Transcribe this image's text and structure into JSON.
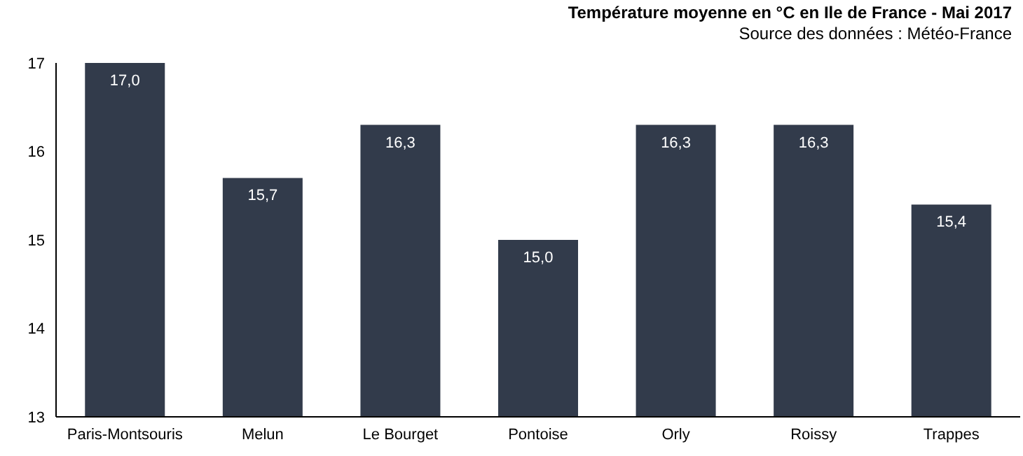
{
  "chart_data": {
    "type": "bar",
    "title": "Température moyenne en °C en Ile de France - Mai 2017",
    "subtitle": "Source des données : Météo-France",
    "categories": [
      "Paris-Montsouris",
      "Melun",
      "Le Bourget",
      "Pontoise",
      "Orly",
      "Roissy",
      "Trappes"
    ],
    "series": [
      {
        "color": "#323b4b",
        "values": [
          17.0,
          15.7,
          16.3,
          15.0,
          16.3,
          16.3,
          15.4
        ],
        "value_labels": [
          "17,0",
          "15,7",
          "16,3",
          "15,0",
          "16,3",
          "16,3",
          "15,4"
        ]
      }
    ],
    "ylim": [
      13,
      17
    ],
    "yticks": [
      13,
      14,
      15,
      16,
      17
    ],
    "grid": false,
    "legend": false
  }
}
